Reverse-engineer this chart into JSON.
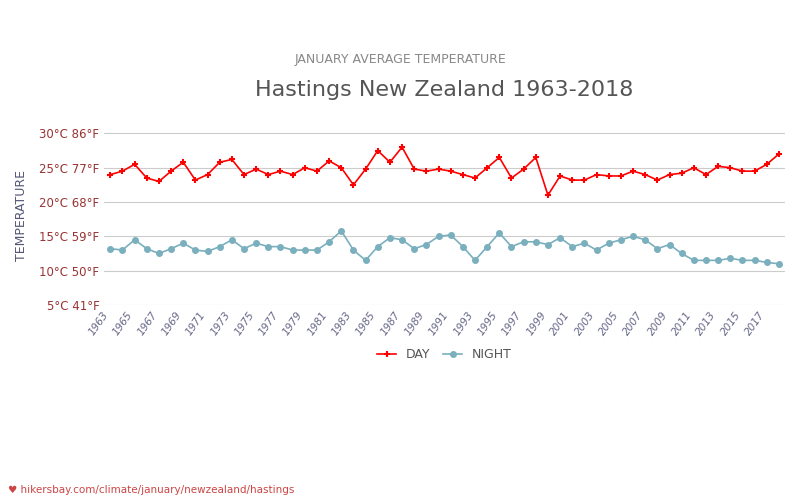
{
  "title": "Hastings New Zealand 1963-2018",
  "subtitle": "JANUARY AVERAGE TEMPERATURE",
  "ylabel": "TEMPERATURE",
  "xlabel_url": "hikersbay.com/climate/january/newzealand/hastings",
  "years": [
    1963,
    1964,
    1965,
    1966,
    1967,
    1968,
    1969,
    1970,
    1971,
    1972,
    1973,
    1974,
    1975,
    1976,
    1977,
    1978,
    1979,
    1980,
    1981,
    1982,
    1983,
    1984,
    1985,
    1986,
    1987,
    1988,
    1989,
    1990,
    1991,
    1992,
    1993,
    1994,
    1995,
    1996,
    1997,
    1998,
    1999,
    2000,
    2001,
    2002,
    2003,
    2004,
    2005,
    2006,
    2007,
    2008,
    2009,
    2010,
    2011,
    2012,
    2013,
    2014,
    2015,
    2016,
    2017,
    2018
  ],
  "day_temps": [
    24.0,
    24.5,
    25.5,
    23.5,
    23.0,
    24.5,
    25.8,
    23.2,
    24.0,
    25.8,
    26.2,
    24.0,
    24.8,
    24.0,
    24.5,
    24.0,
    25.0,
    24.5,
    26.0,
    25.0,
    22.5,
    24.8,
    27.5,
    25.8,
    28.0,
    24.8,
    24.5,
    24.8,
    24.5,
    24.0,
    23.5,
    25.0,
    26.5,
    23.5,
    24.8,
    26.5,
    21.0,
    23.8,
    23.2,
    23.2,
    24.0,
    23.8,
    23.8,
    24.5,
    24.0,
    23.2,
    24.0,
    24.2,
    25.0,
    24.0,
    25.2,
    25.0,
    24.5,
    24.5,
    25.5,
    27.0
  ],
  "night_temps": [
    13.2,
    13.0,
    14.5,
    13.2,
    12.5,
    13.2,
    14.0,
    13.0,
    12.8,
    13.5,
    14.5,
    13.2,
    14.0,
    13.5,
    13.5,
    13.0,
    13.0,
    13.0,
    14.2,
    15.8,
    13.0,
    11.5,
    13.5,
    14.8,
    14.5,
    13.2,
    13.8,
    15.0,
    15.2,
    13.5,
    11.5,
    13.5,
    15.5,
    13.5,
    14.2,
    14.2,
    13.8,
    14.8,
    13.5,
    14.0,
    13.0,
    14.0,
    14.5,
    15.0,
    14.5,
    13.2,
    13.8,
    12.5,
    11.5,
    11.5,
    11.5,
    11.8,
    11.5,
    11.5,
    11.2,
    11.0
  ],
  "day_color": "#ff0000",
  "night_color": "#7aafbe",
  "day_marker": "+",
  "night_marker": "o",
  "title_color": "#555555",
  "subtitle_color": "#888888",
  "ylabel_color": "#555577",
  "tick_label_color": "#993333",
  "grid_color": "#cccccc",
  "background_color": "#ffffff",
  "ylim": [
    5,
    31
  ],
  "yticks_c": [
    5,
    10,
    15,
    20,
    25,
    30
  ],
  "yticks_f": [
    41,
    50,
    59,
    68,
    77,
    86
  ],
  "figsize": [
    8.0,
    5.0
  ],
  "dpi": 100
}
